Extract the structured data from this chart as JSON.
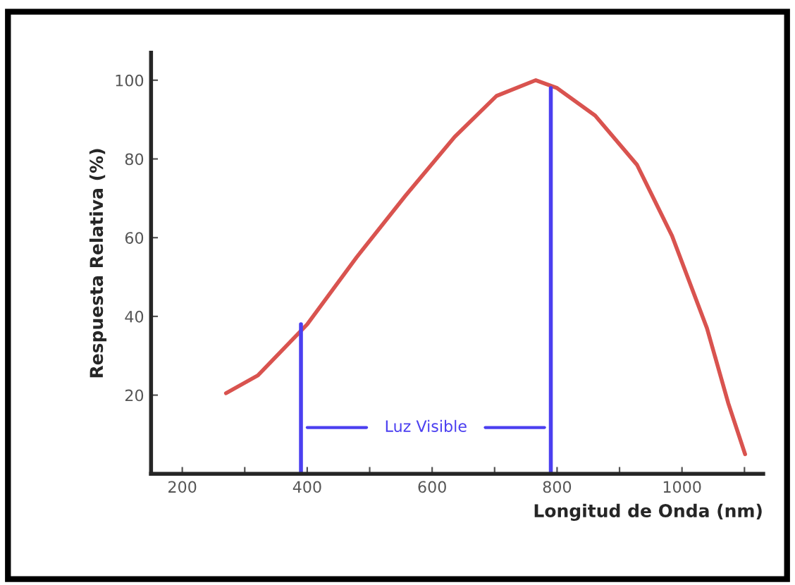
{
  "chart_data": {
    "type": "line",
    "xlabel": "Longitud de Onda (nm)",
    "ylabel": "Respuesta Relativa (%)",
    "xlim": [
      150,
      1130
    ],
    "ylim": [
      0,
      107
    ],
    "xticks": [
      200,
      {
        "value": 300,
        "label": null
      },
      400,
      {
        "value": 500,
        "label": null
      },
      600,
      {
        "value": 700,
        "label": null
      },
      800,
      {
        "value": 900,
        "label": null
      },
      1000,
      {
        "value": 1100,
        "label": null
      }
    ],
    "yticks": [
      20,
      40,
      60,
      80,
      100
    ],
    "grid": false,
    "line_style": "solid",
    "marker": "none",
    "series": [
      {
        "color": "#d9534f",
        "x": [
          270,
          321,
          400,
          479,
          557,
          636,
          703,
          766,
          800,
          861,
          928,
          984,
          1040,
          1074,
          1101
        ],
        "values": [
          20.5,
          25,
          38,
          55,
          70.6,
          85.6,
          96,
          100,
          98,
          91,
          78.5,
          60.5,
          37,
          18,
          5
        ]
      },
      {
        "color": "#4b3ff0",
        "x": [
          390,
          390
        ],
        "values": [
          0,
          38
        ]
      },
      {
        "color": "#4b3ff0",
        "x": [
          790,
          790
        ],
        "values": [
          0,
          98
        ]
      }
    ],
    "annotations": [
      "Luz Visible"
    ]
  }
}
